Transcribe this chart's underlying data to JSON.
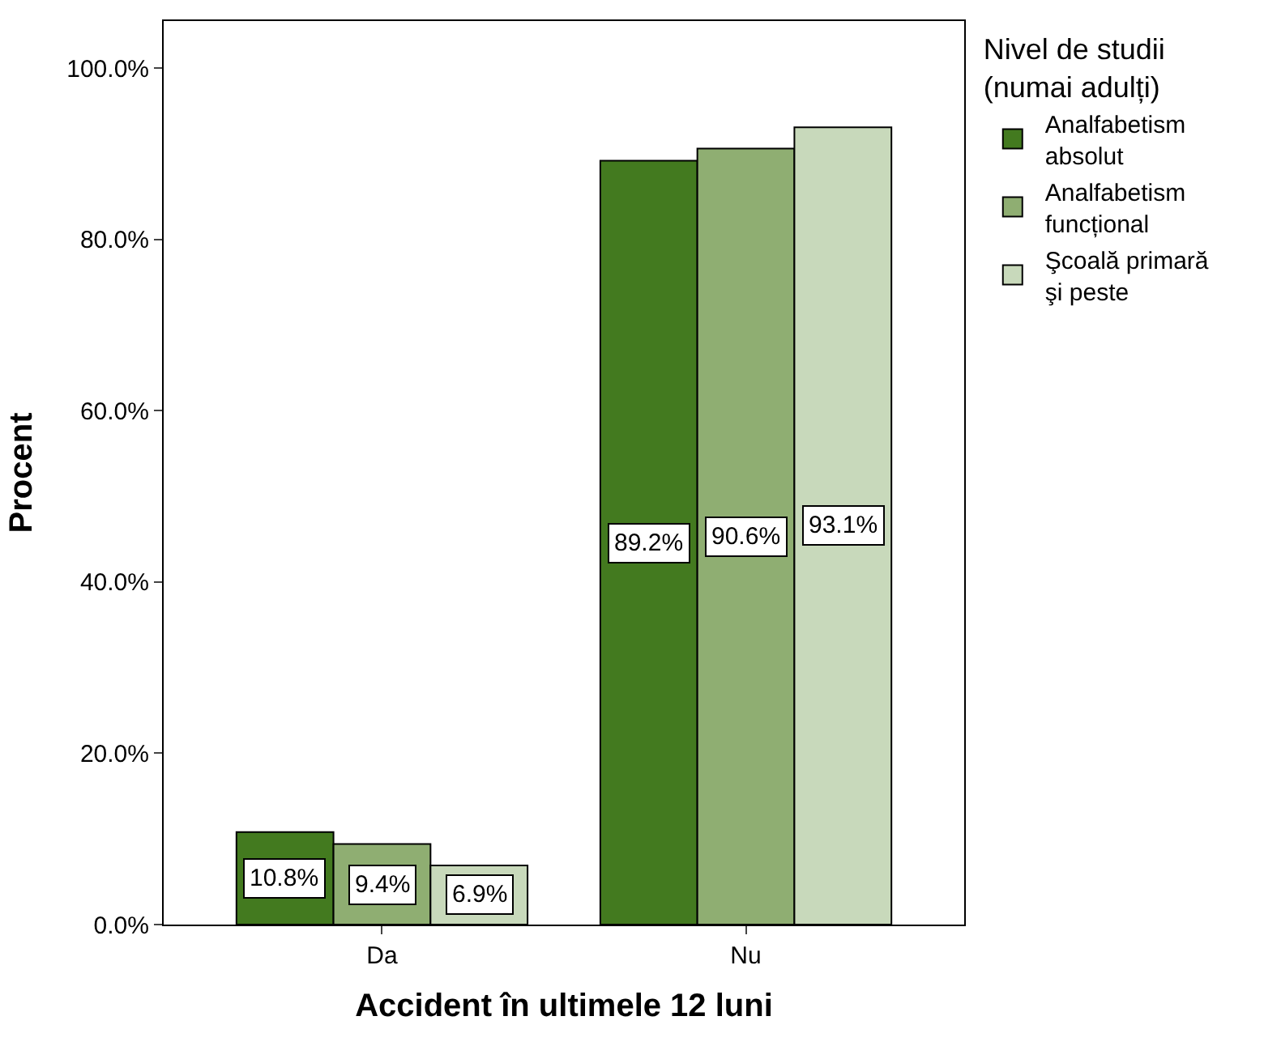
{
  "chart_data": {
    "type": "bar",
    "xlabel": "Accident în ultimele 12 luni",
    "ylabel": "Procent",
    "legend_title": "Nivel de studii (numai adulți)",
    "categories": [
      "Da",
      "Nu"
    ],
    "series": [
      {
        "name": "Analfabetism absolut",
        "color": "#437a1f",
        "values": [
          10.8,
          89.2
        ],
        "value_labels": [
          "10.8%",
          "89.2%"
        ]
      },
      {
        "name": "Analfabetism funcțional",
        "color": "#8fae72",
        "values": [
          9.4,
          90.6
        ],
        "value_labels": [
          "9.4%",
          "90.6%"
        ]
      },
      {
        "name": "Şcoală primară şi peste",
        "color": "#c8d9bb",
        "values": [
          6.9,
          93.1
        ],
        "value_labels": [
          "6.9%",
          "93.1%"
        ]
      }
    ],
    "ylim": [
      0,
      105.5
    ],
    "yticks": [
      {
        "value": 0,
        "label": "0.0%"
      },
      {
        "value": 20,
        "label": "20.0%"
      },
      {
        "value": 40,
        "label": "40.0%"
      },
      {
        "value": 60,
        "label": "60.0%"
      },
      {
        "value": 80,
        "label": "80.0%"
      },
      {
        "value": 100,
        "label": "100.0%"
      }
    ],
    "legend": "top right"
  }
}
